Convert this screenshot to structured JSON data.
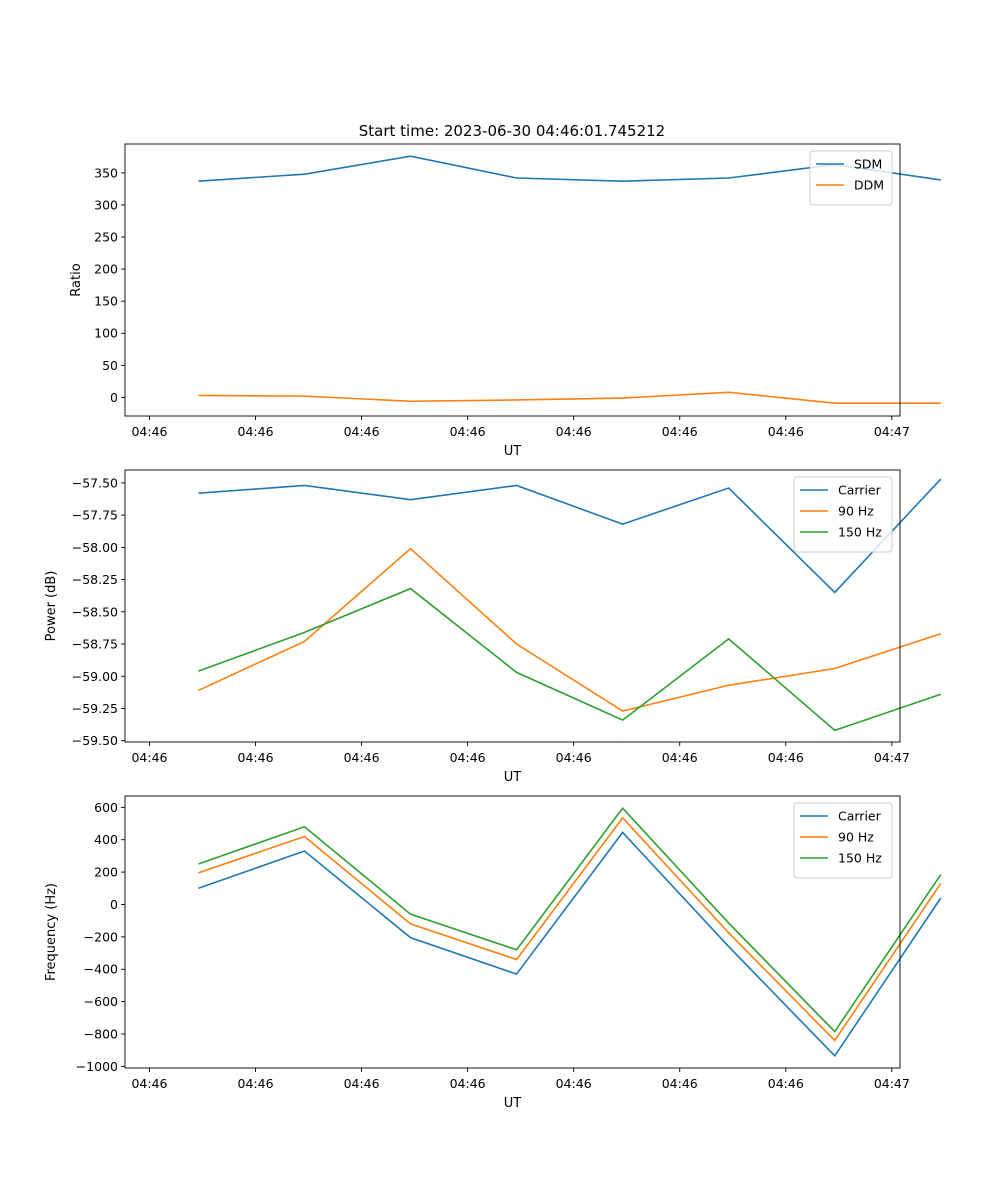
{
  "title": "Start time: 2023-06-30 04:46:01.745212",
  "chart_data": [
    {
      "type": "line",
      "title": "Start time: 2023-06-30 04:46:01.745212",
      "xlabel": "UT",
      "ylabel": "Ratio",
      "x_tick_labels": [
        "04:46",
        "04:46",
        "04:46",
        "04:46",
        "04:46",
        "04:46",
        "04:46",
        "04:47"
      ],
      "x": [
        "04:46:02.3",
        "04:46:03.6",
        "04:46:04.9",
        "04:46:06.2",
        "04:46:07.5",
        "04:46:08.8",
        "04:46:10.1",
        "04:46:11.4"
      ],
      "ylim": [
        -29,
        395
      ],
      "y_ticks": [
        0,
        50,
        100,
        150,
        200,
        250,
        300,
        350
      ],
      "legend": "top-right",
      "series": [
        {
          "name": "SDM",
          "color": "#1f77b4",
          "values": [
            337,
            348,
            376,
            342,
            337,
            342,
            363,
            339
          ]
        },
        {
          "name": "DDM",
          "color": "#ff7f0e",
          "values": [
            3,
            2,
            -6,
            -4,
            -1,
            8,
            -9,
            -9
          ]
        }
      ]
    },
    {
      "type": "line",
      "xlabel": "UT",
      "ylabel": "Power (dB)",
      "x_tick_labels": [
        "04:46",
        "04:46",
        "04:46",
        "04:46",
        "04:46",
        "04:46",
        "04:46",
        "04:47"
      ],
      "x": [
        "04:46:02.3",
        "04:46:03.6",
        "04:46:04.9",
        "04:46:06.2",
        "04:46:07.5",
        "04:46:08.8",
        "04:46:10.1",
        "04:46:11.4"
      ],
      "ylim": [
        -59.51,
        -57.4
      ],
      "y_ticks": [
        -59.5,
        -59.25,
        -59.0,
        -58.75,
        -58.5,
        -58.25,
        -58.0,
        -57.75,
        -57.5
      ],
      "y_tick_labels": [
        "−59.50",
        "−59.25",
        "−59.00",
        "−58.75",
        "−58.50",
        "−58.25",
        "−58.00",
        "−57.75",
        "−57.50"
      ],
      "legend": "top-right",
      "series": [
        {
          "name": "Carrier",
          "color": "#1f77b4",
          "values": [
            -57.58,
            -57.52,
            -57.63,
            -57.52,
            -57.82,
            -57.54,
            -58.35,
            -57.47
          ]
        },
        {
          "name": "90 Hz",
          "color": "#ff7f0e",
          "values": [
            -59.11,
            -58.73,
            -58.01,
            -58.75,
            -59.27,
            -59.07,
            -58.94,
            -58.67
          ]
        },
        {
          "name": "150 Hz",
          "color": "#2ca02c",
          "values": [
            -58.96,
            -58.66,
            -58.32,
            -58.97,
            -59.34,
            -58.71,
            -59.42,
            -59.14
          ]
        }
      ]
    },
    {
      "type": "line",
      "xlabel": "UT",
      "ylabel": "Frequency (Hz)",
      "x_tick_labels": [
        "04:46",
        "04:46",
        "04:46",
        "04:46",
        "04:46",
        "04:46",
        "04:46",
        "04:47"
      ],
      "x": [
        "04:46:02.3",
        "04:46:03.6",
        "04:46:04.9",
        "04:46:06.2",
        "04:46:07.5",
        "04:46:08.8",
        "04:46:10.1",
        "04:46:11.4"
      ],
      "ylim": [
        -1010,
        670
      ],
      "y_ticks": [
        -1000,
        -800,
        -600,
        -400,
        -200,
        0,
        200,
        400,
        600
      ],
      "y_tick_labels": [
        "−1000",
        "−800",
        "−600",
        "−400",
        "−200",
        "0",
        "200",
        "400",
        "600"
      ],
      "legend": "top-right",
      "series": [
        {
          "name": "Carrier",
          "color": "#1f77b4",
          "values": [
            100,
            330,
            -205,
            -430,
            445,
            -260,
            -935,
            40
          ]
        },
        {
          "name": "90 Hz",
          "color": "#ff7f0e",
          "values": [
            195,
            420,
            -120,
            -340,
            535,
            -175,
            -840,
            130
          ]
        },
        {
          "name": "150 Hz",
          "color": "#2ca02c",
          "values": [
            250,
            480,
            -60,
            -280,
            595,
            -115,
            -785,
            185
          ]
        }
      ]
    }
  ]
}
